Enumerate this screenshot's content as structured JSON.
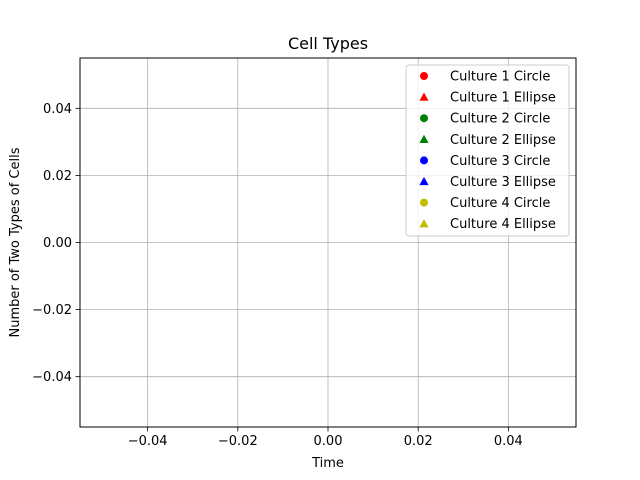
{
  "chart_data": {
    "type": "scatter",
    "title": "Cell Types",
    "xlabel": "Time",
    "ylabel": "Number of Two Types of Cells",
    "xlim": [
      -0.055,
      0.055
    ],
    "ylim": [
      -0.055,
      0.055
    ],
    "x_ticks": [
      {
        "value": -0.04,
        "label": "−0.04"
      },
      {
        "value": -0.02,
        "label": "−0.02"
      },
      {
        "value": 0.0,
        "label": "0.00"
      },
      {
        "value": 0.02,
        "label": "0.02"
      },
      {
        "value": 0.04,
        "label": "0.04"
      }
    ],
    "y_ticks": [
      {
        "value": -0.04,
        "label": "−0.04"
      },
      {
        "value": -0.02,
        "label": "−0.02"
      },
      {
        "value": 0.0,
        "label": "0.00"
      },
      {
        "value": 0.02,
        "label": "0.02"
      },
      {
        "value": 0.04,
        "label": "0.04"
      }
    ],
    "grid": true,
    "legend_position": "top-right",
    "series": [
      {
        "name": "Culture 1 Circle",
        "color": "#ff0000",
        "marker": "circle",
        "points": []
      },
      {
        "name": "Culture 1 Ellipse",
        "color": "#ff0000",
        "marker": "triangle",
        "points": []
      },
      {
        "name": "Culture 2 Circle",
        "color": "#008000",
        "marker": "circle",
        "points": []
      },
      {
        "name": "Culture 2 Ellipse",
        "color": "#008000",
        "marker": "triangle",
        "points": []
      },
      {
        "name": "Culture 3 Circle",
        "color": "#0000ff",
        "marker": "circle",
        "points": []
      },
      {
        "name": "Culture 3 Ellipse",
        "color": "#0000ff",
        "marker": "triangle",
        "points": []
      },
      {
        "name": "Culture 4 Circle",
        "color": "#bfbf00",
        "marker": "circle",
        "points": []
      },
      {
        "name": "Culture 4 Ellipse",
        "color": "#bfbf00",
        "marker": "triangle",
        "points": []
      }
    ]
  }
}
